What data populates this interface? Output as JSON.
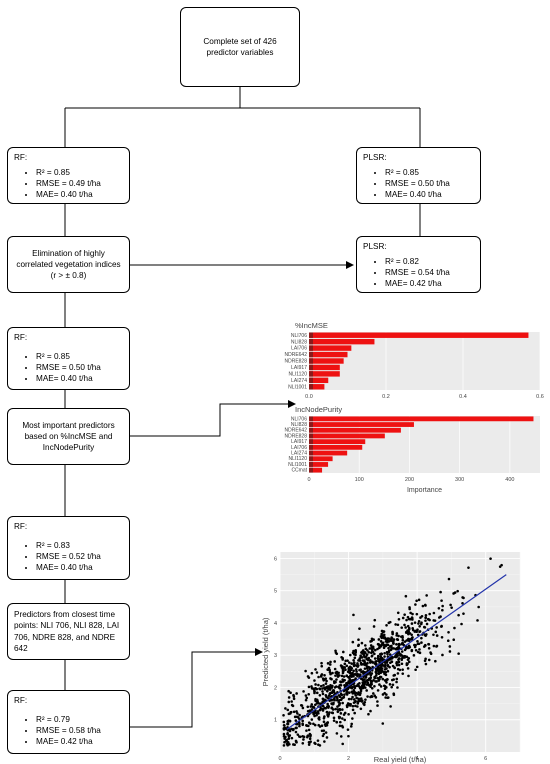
{
  "top_box": {
    "text": "Complete set of 426 predictor variables"
  },
  "rf1": {
    "title": "RF:",
    "r2": "R² = 0.85",
    "rmse": "RMSE = 0.49 t/ha",
    "mae": "MAE= 0.40 t/ha"
  },
  "plsr1": {
    "title": "PLSR:",
    "r2": "R² = 0.85",
    "rmse": "RMSE = 0.50 t/ha",
    "mae": "MAE= 0.40 t/ha"
  },
  "elim_box": {
    "text": "Elimination of highly correlated vegetation indices (r > ± 0.8)"
  },
  "plsr2": {
    "title": "PLSR:",
    "r2": "R² = 0.82",
    "rmse": "RMSE = 0.54 t/ha",
    "mae": "MAE= 0.42 t/ha"
  },
  "rf2": {
    "title": "RF:",
    "r2": "R² = 0.85",
    "rmse": "RMSE = 0.50 t/ha",
    "mae": "MAE= 0.40 t/ha"
  },
  "important_box": {
    "text": "Most important predictors based on %IncMSE and IncNodePurity"
  },
  "rf3": {
    "title": "RF:",
    "r2": "R² = 0.83",
    "rmse": "RMSE = 0.52 t/ha",
    "mae": "MAE= 0.40 t/ha"
  },
  "closest_box": {
    "text": "Predictors from closest time points: NLI 706, NLI 828, LAI 706, NDRE 828, and NDRE 642"
  },
  "rf4": {
    "title": "RF:",
    "r2": "R² = 0.79",
    "rmse": "RMSE = 0.58 t/ha",
    "mae": "MAE= 0.42 t/ha"
  },
  "colors": {
    "bar_red": "#ee1111",
    "bar_dark": "#8b1a1a",
    "bar_pink": "#f5b8e8",
    "panel_bg": "#ebebeb",
    "line_blue": "#2233aa"
  },
  "chart_data": [
    {
      "type": "bar",
      "title": "%IncMSE",
      "orientation": "horizontal",
      "categories": [
        "NLI706",
        "NLI828",
        "LAI706",
        "NDRE642",
        "NDRE828",
        "LAI917",
        "NLI1120",
        "LAI274",
        "NLI1001"
      ],
      "values": [
        0.57,
        0.17,
        0.11,
        0.1,
        0.09,
        0.08,
        0.08,
        0.05,
        0.04
      ],
      "xlim": [
        0,
        0.6
      ],
      "xticks": [
        "0.0",
        "0.2",
        "0.4",
        "0.6"
      ]
    },
    {
      "type": "bar",
      "title": "IncNodePurity",
      "orientation": "horizontal",
      "categories": [
        "NLI706",
        "NLI828",
        "NDRE642",
        "NDRE828",
        "LAI917",
        "LAI706",
        "LAI274",
        "NLI1120",
        "NLI1001",
        "CCmat"
      ],
      "values": [
        447,
        209,
        183,
        151,
        112,
        106,
        76,
        47,
        38,
        26
      ],
      "xlim": [
        0,
        460
      ],
      "xticks": [
        "0",
        "100",
        "200",
        "300",
        "400"
      ],
      "xlabel": "Importance"
    },
    {
      "type": "scatter",
      "xlabel": "Real yield (t/ha)",
      "ylabel": "Predicted yield (t/ha)",
      "xlim": [
        0,
        7
      ],
      "ylim": [
        0,
        6.2
      ],
      "xticks": [
        "0",
        "2",
        "4",
        "6"
      ],
      "yticks": [
        "1",
        "2",
        "3",
        "4",
        "5",
        "6"
      ],
      "n_points": 1200,
      "fit_line": {
        "x": [
          0.2,
          6.6
        ],
        "y": [
          0.7,
          5.5
        ]
      }
    }
  ]
}
